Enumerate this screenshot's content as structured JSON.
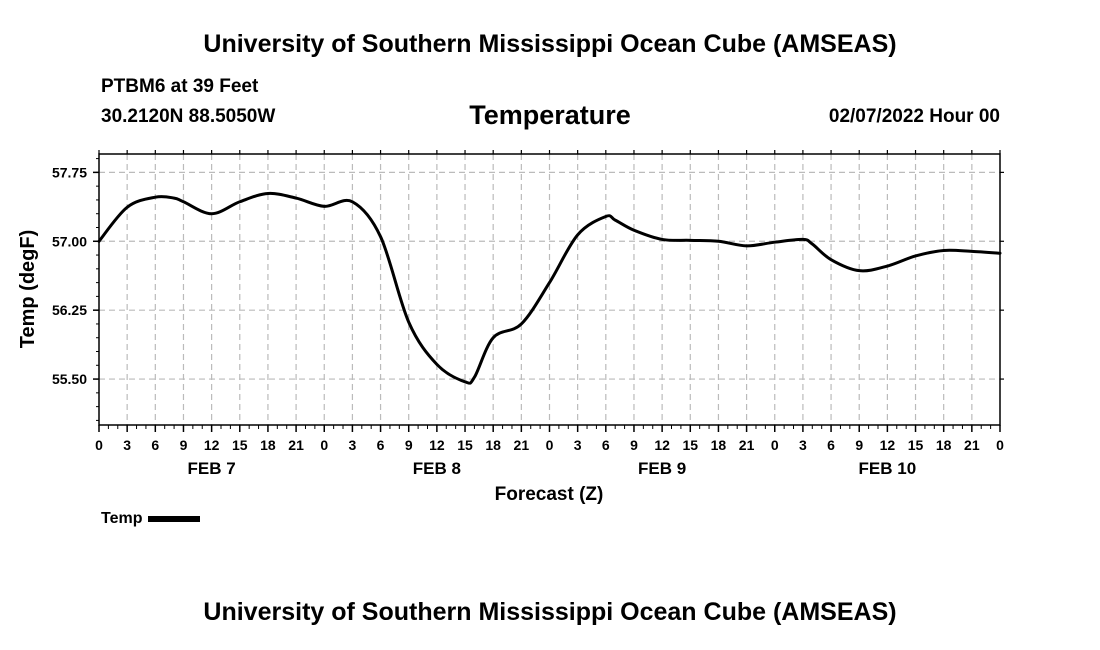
{
  "header": {
    "title": "University of Southern Mississippi Ocean Cube (AMSEAS)",
    "station": "PTBM6 at 39 Feet",
    "coords": "30.2120N  88.5050W",
    "run_time": "02/07/2022 Hour 00"
  },
  "footer": {
    "title": "University of Southern Mississippi Ocean Cube (AMSEAS)"
  },
  "chart_data": {
    "type": "line",
    "title": "Temperature",
    "xlabel": "Forecast (Z)",
    "ylabel": "Temp (degF)",
    "xlim": [
      0,
      96
    ],
    "ylim": [
      55.0,
      57.95
    ],
    "yticks": [
      55.5,
      56.25,
      57.0,
      57.75
    ],
    "ytick_labels": [
      "55.50",
      "56.25",
      "57.00",
      "57.75"
    ],
    "x_tick_labels": [
      "0",
      "3",
      "6",
      "9",
      "12",
      "15",
      "18",
      "21",
      "0",
      "3",
      "6",
      "9",
      "12",
      "15",
      "18",
      "21",
      "0",
      "3",
      "6",
      "9",
      "12",
      "15",
      "18",
      "21",
      "0",
      "3",
      "6",
      "9",
      "12",
      "15",
      "18",
      "21",
      "0"
    ],
    "day_labels": [
      {
        "label": "FEB 7",
        "hour": 12
      },
      {
        "label": "FEB 8",
        "hour": 36
      },
      {
        "label": "FEB 9",
        "hour": 60
      },
      {
        "label": "FEB 10",
        "hour": 84
      }
    ],
    "grid": true,
    "legend": {
      "entries": [
        "Temp"
      ],
      "position": "below-left"
    },
    "series": [
      {
        "name": "Temp",
        "x": [
          0,
          3,
          6,
          8,
          9,
          12,
          15,
          18,
          21,
          24,
          27,
          30,
          33,
          36,
          39,
          40,
          42,
          45,
          48,
          51,
          54,
          55,
          57,
          60,
          63,
          66,
          69,
          72,
          75,
          76,
          78,
          81,
          84,
          87,
          90,
          93,
          96
        ],
        "y": [
          57.0,
          57.37,
          57.48,
          57.47,
          57.43,
          57.3,
          57.43,
          57.52,
          57.47,
          57.38,
          57.43,
          57.05,
          56.12,
          55.66,
          55.47,
          55.52,
          55.95,
          56.1,
          56.55,
          57.07,
          57.27,
          57.23,
          57.12,
          57.02,
          57.01,
          57.0,
          56.95,
          56.99,
          57.02,
          56.97,
          56.8,
          56.68,
          56.73,
          56.84,
          56.9,
          56.89,
          56.87
        ]
      }
    ]
  }
}
